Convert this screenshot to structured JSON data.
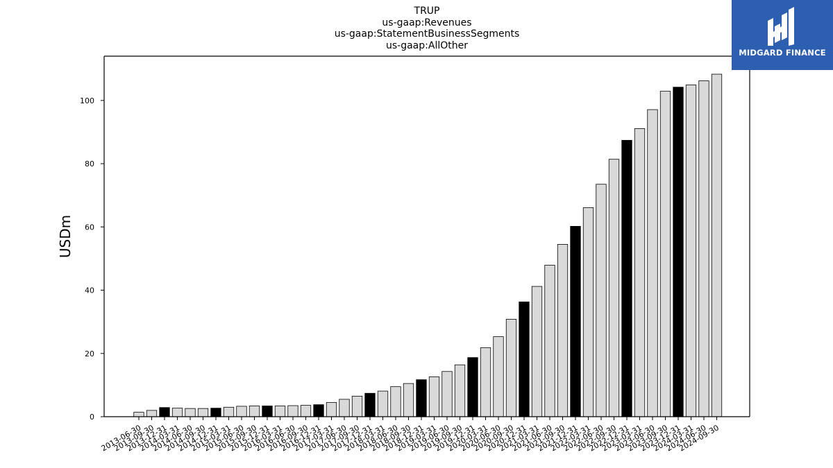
{
  "chart_data": {
    "type": "bar",
    "title_lines": [
      "TRUP",
      "us-gaap:Revenues",
      "us-gaap:StatementBusinessSegments",
      "us-gaap:AllOther"
    ],
    "xlabel": "",
    "ylabel": "USDm",
    "ylim": [
      0,
      114
    ],
    "yticks": [
      0,
      20,
      40,
      60,
      80,
      100
    ],
    "grid": false,
    "legend": "none",
    "colors": {
      "quarter": "#d9d9d9",
      "year_end": "#000000",
      "edge": "#000000"
    },
    "categories": [
      "2013-06-30",
      "2013-09-30",
      "2013-12-31",
      "2014-03-31",
      "2014-06-30",
      "2014-09-30",
      "2014-12-31",
      "2015-03-31",
      "2015-06-30",
      "2015-09-30",
      "2015-12-31",
      "2016-03-31",
      "2016-06-30",
      "2016-09-30",
      "2016-12-31",
      "2017-03-31",
      "2017-06-30",
      "2017-09-30",
      "2017-12-31",
      "2018-03-31",
      "2018-06-30",
      "2018-09-30",
      "2018-12-31",
      "2019-03-31",
      "2019-06-30",
      "2019-09-30",
      "2019-12-31",
      "2020-03-31",
      "2020-06-30",
      "2020-09-30",
      "2020-12-31",
      "2021-03-31",
      "2021-06-30",
      "2021-09-30",
      "2021-12-31",
      "2022-03-31",
      "2022-06-30",
      "2022-09-30",
      "2022-12-31",
      "2023-03-31",
      "2023-06-30",
      "2023-09-30",
      "2023-12-31",
      "2024-03-31",
      "2024-06-30",
      "2024-09-30"
    ],
    "values": [
      1.4,
      2.0,
      2.9,
      2.7,
      2.6,
      2.6,
      2.7,
      3.0,
      3.3,
      3.4,
      3.4,
      3.4,
      3.5,
      3.6,
      3.8,
      4.5,
      5.5,
      6.5,
      7.4,
      8.1,
      9.5,
      10.5,
      11.7,
      12.6,
      14.3,
      16.4,
      18.7,
      21.8,
      25.3,
      30.8,
      36.3,
      41.2,
      47.9,
      54.5,
      60.2,
      66.1,
      73.5,
      81.4,
      87.4,
      91.1,
      97.1,
      102.9,
      104.2,
      104.9,
      106.2,
      108.3
    ],
    "highlight": [
      false,
      false,
      true,
      false,
      false,
      false,
      true,
      false,
      false,
      false,
      true,
      false,
      false,
      false,
      true,
      false,
      false,
      false,
      true,
      false,
      false,
      false,
      true,
      false,
      false,
      false,
      true,
      false,
      false,
      false,
      true,
      false,
      false,
      false,
      true,
      false,
      false,
      false,
      true,
      false,
      false,
      false,
      true,
      false,
      false,
      false
    ]
  },
  "logo": {
    "text": "MIDGARD FINANCE",
    "icon": "midgard-logo-icon",
    "background": "#2d5fb0"
  }
}
